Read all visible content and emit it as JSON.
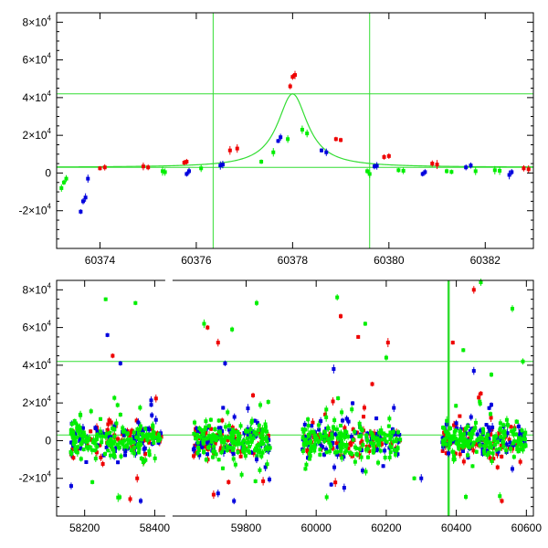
{
  "colors": {
    "green": "#00ee00",
    "red": "#ee0000",
    "blue": "#0000dd",
    "model": "#33dd33",
    "frame": "#000000"
  },
  "chart_data": [
    {
      "type": "scatter",
      "title": "",
      "xlabel": "",
      "ylabel": "",
      "xlim": [
        60373.1,
        60383.0
      ],
      "ylim": [
        -40000,
        85000
      ],
      "x_ticks": [
        {
          "value": 60374,
          "label": "60374"
        },
        {
          "value": 60376,
          "label": "60376"
        },
        {
          "value": 60378,
          "label": "60378"
        },
        {
          "value": 60380,
          "label": "60380"
        },
        {
          "value": 60382,
          "label": "60382"
        }
      ],
      "y_ticks": [
        {
          "value": 80000,
          "mant": "8×10",
          "exp": "4"
        },
        {
          "value": 60000,
          "mant": "6×10",
          "exp": "4"
        },
        {
          "value": 40000,
          "mant": "4×10",
          "exp": "4"
        },
        {
          "value": 20000,
          "mant": "2×10",
          "exp": "4"
        },
        {
          "value": 0,
          "mant": "0",
          "exp": ""
        },
        {
          "value": -20000,
          "mant": "-2×10",
          "exp": "4"
        }
      ],
      "hlines": [
        42000,
        3000
      ],
      "vlines": [
        60376.35,
        60379.6
      ],
      "model_curve": {
        "baseline": 3000,
        "peak": 42000,
        "center": 60378.0,
        "width": 0.38
      },
      "series": [
        {
          "color": "green",
          "points": [
            [
              60373.2,
              -8000
            ],
            [
              60373.25,
              -5000
            ],
            [
              60373.3,
              -3000
            ],
            [
              60375.3,
              1000
            ],
            [
              60375.35,
              500
            ],
            [
              60376.1,
              2500
            ],
            [
              60377.35,
              6000
            ],
            [
              60377.6,
              11000
            ],
            [
              60377.9,
              18000
            ],
            [
              60378.2,
              23000
            ],
            [
              60378.3,
              21000
            ],
            [
              60379.55,
              1000
            ],
            [
              60379.6,
              -500
            ],
            [
              60380.2,
              1500
            ],
            [
              60380.3,
              1200
            ],
            [
              60381.2,
              1000
            ],
            [
              60381.3,
              600
            ],
            [
              60381.8,
              1000
            ],
            [
              60382.2,
              1500
            ],
            [
              60382.3,
              1200
            ]
          ]
        },
        {
          "color": "red",
          "points": [
            [
              60374.0,
              2500
            ],
            [
              60374.1,
              3000
            ],
            [
              60374.9,
              3500
            ],
            [
              60375.0,
              3000
            ],
            [
              60375.75,
              5500
            ],
            [
              60375.8,
              6000
            ],
            [
              60376.7,
              12000
            ],
            [
              60376.85,
              13000
            ],
            [
              60377.95,
              46000
            ],
            [
              60378.0,
              51000
            ],
            [
              60378.05,
              52000
            ],
            [
              60378.9,
              18000
            ],
            [
              60379.0,
              17500
            ],
            [
              60379.9,
              8500
            ],
            [
              60380.0,
              9000
            ],
            [
              60380.9,
              5000
            ],
            [
              60381.0,
              4500
            ],
            [
              60382.8,
              2500
            ],
            [
              60382.9,
              2000
            ]
          ]
        },
        {
          "color": "blue",
          "points": [
            [
              60373.6,
              -20500
            ],
            [
              60373.65,
              -15000
            ],
            [
              60373.7,
              -13000
            ],
            [
              60373.75,
              -3000
            ],
            [
              60375.8,
              -500
            ],
            [
              60375.85,
              1000
            ],
            [
              60376.5,
              4000
            ],
            [
              60376.55,
              4500
            ],
            [
              60377.7,
              17000
            ],
            [
              60377.75,
              19000
            ],
            [
              60378.6,
              12000
            ],
            [
              60378.7,
              11000
            ],
            [
              60379.7,
              3500
            ],
            [
              60379.75,
              3800
            ],
            [
              60380.7,
              -500
            ],
            [
              60380.75,
              500
            ],
            [
              60381.6,
              3000
            ],
            [
              60381.7,
              4000
            ],
            [
              60382.5,
              -1000
            ],
            [
              60382.55,
              500
            ]
          ]
        }
      ]
    },
    {
      "type": "scatter",
      "title": "",
      "xlabel": "",
      "ylabel": "",
      "xlim": [
        58120,
        60620
      ],
      "ylim": [
        -40000,
        85000
      ],
      "axis_breaks": [
        [
          58430,
          59590
        ]
      ],
      "x_ticks": [
        {
          "value": 58200,
          "label": "58200"
        },
        {
          "value": 58400,
          "label": "58400"
        },
        {
          "value": 59800,
          "label": "59800"
        },
        {
          "value": 60000,
          "label": "60000"
        },
        {
          "value": 60200,
          "label": "60200"
        },
        {
          "value": 60400,
          "label": "60400"
        },
        {
          "value": 60600,
          "label": "60600"
        }
      ],
      "y_ticks": [
        {
          "value": 80000,
          "mant": "8×10",
          "exp": "4"
        },
        {
          "value": 60000,
          "mant": "6×10",
          "exp": "4"
        },
        {
          "value": 40000,
          "mant": "4×10",
          "exp": "4"
        },
        {
          "value": 20000,
          "mant": "2×10",
          "exp": "4"
        },
        {
          "value": 0,
          "mant": "0",
          "exp": ""
        },
        {
          "value": -20000,
          "mant": "-2×10",
          "exp": "4"
        }
      ],
      "hlines": [
        42000,
        3000
      ],
      "vlines": [
        60378
      ],
      "seasons": [
        [
          58160,
          58420
        ],
        [
          59650,
          59870
        ],
        [
          59960,
          60240
        ],
        [
          60360,
          60600
        ]
      ],
      "outliers": [
        {
          "color": "green",
          "points": [
            [
              58260,
              75000
            ],
            [
              58345,
              73000
            ],
            [
              58222,
              -22000
            ],
            [
              58300,
              -30000
            ],
            [
              59680,
              62000
            ],
            [
              59760,
              59000
            ],
            [
              59830,
              73000
            ],
            [
              60060,
              76000
            ],
            [
              60140,
              62000
            ],
            [
              60200,
              44000
            ],
            [
              60420,
              48000
            ],
            [
              60470,
              84000
            ],
            [
              60560,
              70000
            ],
            [
              60500,
              35000
            ],
            [
              60590,
              42000
            ],
            [
              60030,
              -30000
            ],
            [
              60280,
              -20000
            ],
            [
              60392,
              -10000
            ]
          ]
        },
        {
          "color": "red",
          "points": [
            [
              58280,
              45000
            ],
            [
              58330,
              -31000
            ],
            [
              58350,
              -20000
            ],
            [
              59690,
              60000
            ],
            [
              59720,
              52000
            ],
            [
              60070,
              66000
            ],
            [
              60120,
              55000
            ],
            [
              60160,
              30000
            ],
            [
              60205,
              52000
            ],
            [
              60390,
              52000
            ],
            [
              60450,
              80000
            ],
            [
              60530,
              -32000
            ],
            [
              60470,
              25000
            ],
            [
              59750,
              -22000
            ]
          ]
        },
        {
          "color": "blue",
          "points": [
            [
              58265,
              56000
            ],
            [
              58302,
              41000
            ],
            [
              58360,
              -32000
            ],
            [
              58390,
              19000
            ],
            [
              59740,
              41000
            ],
            [
              59720,
              -28000
            ],
            [
              59830,
              -10000
            ],
            [
              60050,
              38000
            ],
            [
              60080,
              -25000
            ],
            [
              60300,
              -20000
            ],
            [
              60450,
              37000
            ],
            [
              60500,
              19000
            ],
            [
              60560,
              -15000
            ]
          ]
        }
      ]
    }
  ]
}
